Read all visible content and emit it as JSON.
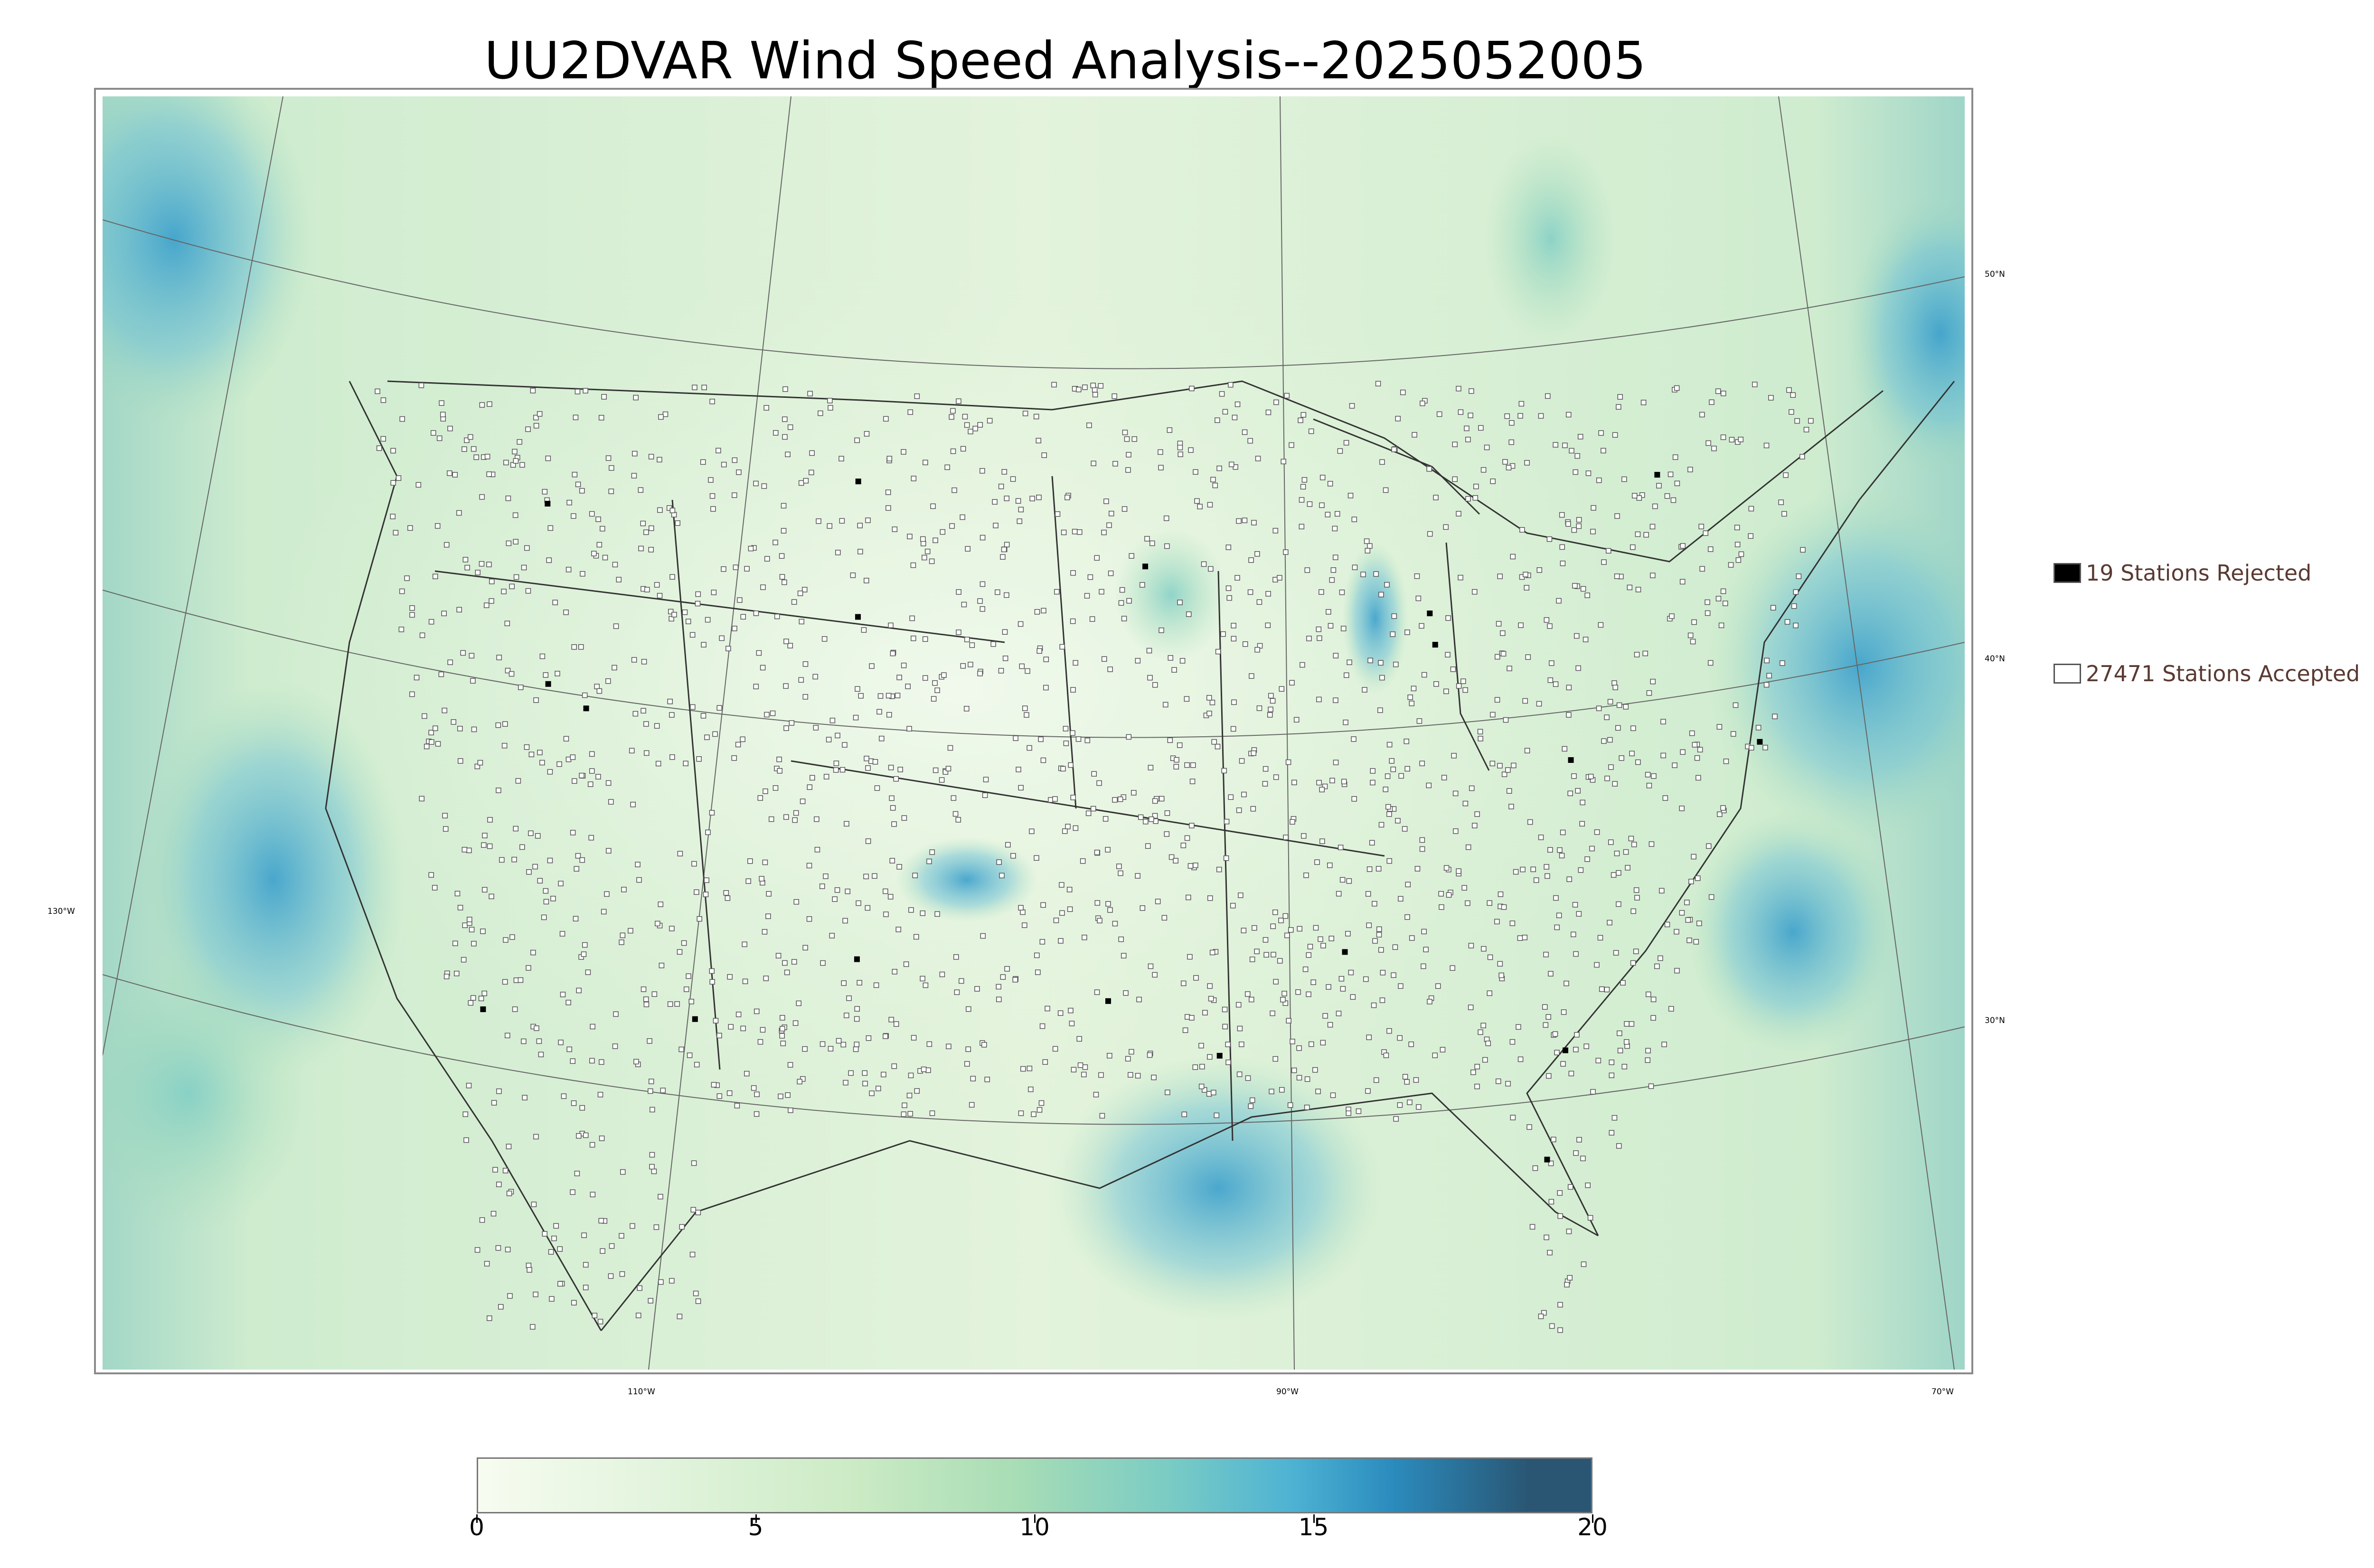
{
  "title": "UU2DVAR Wind Speed Analysis--2025052005",
  "axes": {
    "lon_labels": [
      "130°W",
      "110°W",
      "90°W",
      "70°W"
    ],
    "lat_labels": [
      "50°N",
      "40°N",
      "30°N"
    ]
  },
  "legend": {
    "rejected": {
      "label": "19 Stations Rejected",
      "count": 19,
      "swatch_color": "#000000"
    },
    "accepted": {
      "label": "27471 Stations Accepted",
      "count": 27471,
      "swatch_color": "#ffffff"
    }
  },
  "colorbar": {
    "min": 0,
    "max": 20,
    "ticks": [
      "0",
      "5",
      "10",
      "15",
      "20"
    ],
    "colors": [
      "#f7fcf0",
      "#e0f3db",
      "#ccebc5",
      "#a8ddb5",
      "#7bccc4",
      "#4eb3d3",
      "#2b8cbe",
      "#2a5674"
    ]
  },
  "colors": {
    "land": "#e6f4dd",
    "water": "#cdebd8",
    "high_wind": "#4eb3d3",
    "border": "#555555"
  },
  "icons": {
    "station_accepted": "hollow-square-icon",
    "station_rejected": "filled-square-icon"
  }
}
